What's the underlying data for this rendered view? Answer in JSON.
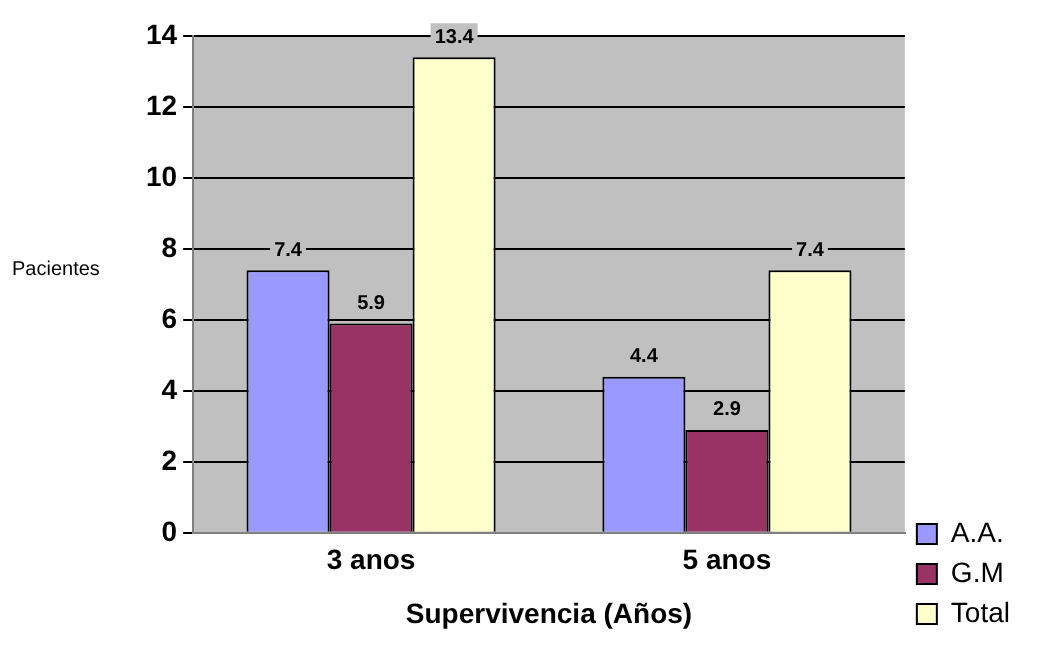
{
  "chart_data": {
    "type": "bar",
    "xlabel": "Supervivencia (Años)",
    "ylabel": "Pacientes",
    "categories": [
      "3 anos",
      "5 anos"
    ],
    "series": [
      {
        "name": "A.A.",
        "color": "#9999ff",
        "values": [
          7.4,
          4.4
        ]
      },
      {
        "name": "G.M",
        "color": "#993366",
        "values": [
          5.9,
          2.9
        ]
      },
      {
        "name": "Total",
        "color": "#ffffcc",
        "values": [
          13.4,
          7.4
        ]
      }
    ],
    "ylim": [
      0,
      14
    ],
    "yticks": [
      0,
      2,
      4,
      6,
      8,
      10,
      12,
      14
    ],
    "grid": "y",
    "legend": "bottom right",
    "data_labels": true
  }
}
